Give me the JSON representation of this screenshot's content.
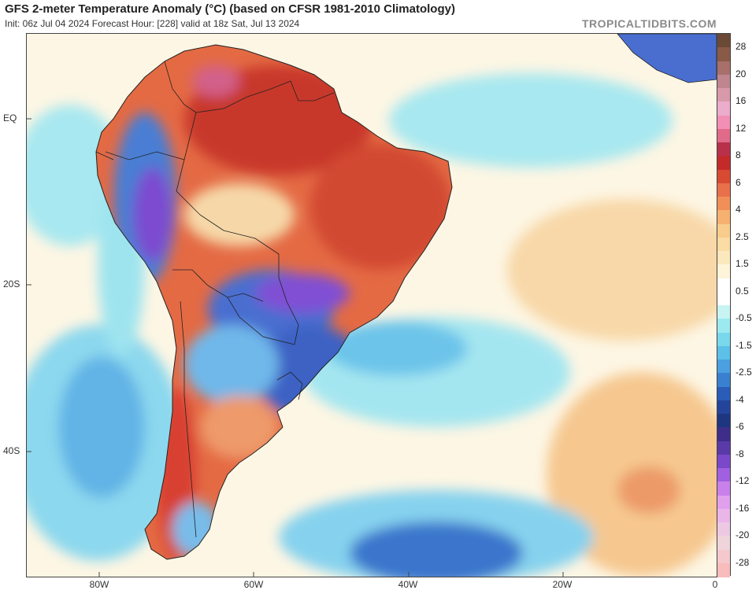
{
  "header": {
    "title": "GFS 2-meter Temperature Anomaly (°C) (based on CFSR 1981-2010 Climatology)",
    "subtitle": "Init: 06z Jul 04 2024   Forecast Hour: [228]   valid at 18z Sat, Jul 13 2024",
    "brand": "TROPICALTIDBITS.COM"
  },
  "axes": {
    "lat_labels": [
      "EQ",
      "20S",
      "40S"
    ],
    "lon_labels": [
      "80W",
      "60W",
      "40W",
      "20W",
      "0"
    ]
  },
  "colorbar": {
    "labels": [
      "28",
      "20",
      "16",
      "12",
      "8",
      "6",
      "4",
      "2.5",
      "1.5",
      "0.5",
      "-0.5",
      "-1.5",
      "-2.5",
      "-4",
      "-6",
      "-8",
      "-12",
      "-16",
      "-20",
      "-28"
    ],
    "colors": [
      "#6b4a35",
      "#8a5a48",
      "#a8706a",
      "#c0868f",
      "#d89aab",
      "#ecaccc",
      "#f28fb4",
      "#e06a8a",
      "#b8304a",
      "#c42a2a",
      "#d84a32",
      "#e8704a",
      "#f09058",
      "#f6b070",
      "#f8cc8c",
      "#fadca4",
      "#fbe8bc",
      "#fdf4da",
      "#ffffff",
      "#ffffff",
      "#c8f4f4",
      "#9ceaf0",
      "#7ad8ec",
      "#5cc0e8",
      "#4aa0e0",
      "#3a80d0",
      "#2a5cb8",
      "#24449c",
      "#1e3680",
      "#3e2e8a",
      "#5a3aa8",
      "#7a48c8",
      "#a060e0",
      "#c880ea",
      "#e0a0ee",
      "#eab6ea",
      "#ecc8e4",
      "#f0d4dc",
      "#f4c8cc",
      "#f8bcbc"
    ]
  },
  "map": {
    "colors": {
      "ocean_neutral": "#fdf6e4",
      "warm_ocean": "#f6c890",
      "cool_ocean": "#9ee6ef",
      "cold_ocean": "#5ab0e4",
      "very_cold_ocean": "#2f62c0",
      "hot_land": "#d8442c",
      "very_hot_land": "#b8302a",
      "cold_land": "#4a7ed4",
      "very_cold_land": "#7c4cd0",
      "border": "#222222"
    }
  }
}
